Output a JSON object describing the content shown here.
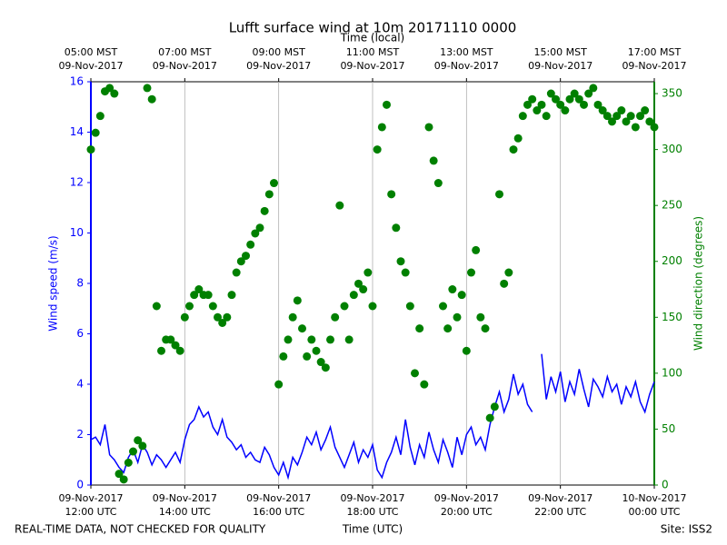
{
  "chart_data": {
    "type": "line",
    "title": "Lufft surface wind at 10m 20171110 0000",
    "top_xlabel": "Time (local)",
    "xlabel": "Time (UTC)",
    "ylabel": "Wind speed (m/s)",
    "y2label": "Wind direction (degrees)",
    "footer_left": "REAL-TIME DATA, NOT CHECKED FOR QUALITY",
    "footer_right": "Site: ISS2",
    "grid": "x",
    "xlim": [
      "2017-11-09T12:00",
      "2017-11-10T00:00"
    ],
    "xticks": [
      {
        "value": "2017-11-09T12:00",
        "label": [
          "09-Nov-2017",
          "12:00 UTC"
        ]
      },
      {
        "value": "2017-11-09T14:00",
        "label": [
          "09-Nov-2017",
          "14:00 UTC"
        ]
      },
      {
        "value": "2017-11-09T16:00",
        "label": [
          "09-Nov-2017",
          "16:00 UTC"
        ]
      },
      {
        "value": "2017-11-09T18:00",
        "label": [
          "09-Nov-2017",
          "18:00 UTC"
        ]
      },
      {
        "value": "2017-11-09T20:00",
        "label": [
          "09-Nov-2017",
          "20:00 UTC"
        ]
      },
      {
        "value": "2017-11-09T22:00",
        "label": [
          "09-Nov-2017",
          "22:00 UTC"
        ]
      },
      {
        "value": "2017-11-10T00:00",
        "label": [
          "10-Nov-2017",
          "00:00 UTC"
        ]
      }
    ],
    "top_xticks": [
      {
        "value": "2017-11-09T12:00",
        "label": [
          "05:00 MST",
          "09-Nov-2017"
        ]
      },
      {
        "value": "2017-11-09T14:00",
        "label": [
          "07:00 MST",
          "09-Nov-2017"
        ]
      },
      {
        "value": "2017-11-09T16:00",
        "label": [
          "09:00 MST",
          "09-Nov-2017"
        ]
      },
      {
        "value": "2017-11-09T18:00",
        "label": [
          "11:00 MST",
          "09-Nov-2017"
        ]
      },
      {
        "value": "2017-11-09T20:00",
        "label": [
          "13:00 MST",
          "09-Nov-2017"
        ]
      },
      {
        "value": "2017-11-09T22:00",
        "label": [
          "15:00 MST",
          "09-Nov-2017"
        ]
      },
      {
        "value": "2017-11-10T00:00",
        "label": [
          "17:00 MST",
          "09-Nov-2017"
        ]
      }
    ],
    "ylim": [
      0,
      16
    ],
    "yticks": [
      0,
      2,
      4,
      6,
      8,
      10,
      12,
      14,
      16
    ],
    "y2lim": [
      0,
      360.6
    ],
    "y2ticks": [
      0,
      50,
      100,
      150,
      200,
      250,
      300,
      350
    ],
    "ycolor": "#0000ff",
    "y2color": "#008000",
    "x": [
      "2017-11-09T12:00",
      "2017-11-09T12:06",
      "2017-11-09T12:12",
      "2017-11-09T12:18",
      "2017-11-09T12:24",
      "2017-11-09T12:30",
      "2017-11-09T12:36",
      "2017-11-09T12:42",
      "2017-11-09T12:48",
      "2017-11-09T12:54",
      "2017-11-09T13:00",
      "2017-11-09T13:06",
      "2017-11-09T13:12",
      "2017-11-09T13:18",
      "2017-11-09T13:24",
      "2017-11-09T13:30",
      "2017-11-09T13:36",
      "2017-11-09T13:42",
      "2017-11-09T13:48",
      "2017-11-09T13:54",
      "2017-11-09T14:00",
      "2017-11-09T14:06",
      "2017-11-09T14:12",
      "2017-11-09T14:18",
      "2017-11-09T14:24",
      "2017-11-09T14:30",
      "2017-11-09T14:36",
      "2017-11-09T14:42",
      "2017-11-09T14:48",
      "2017-11-09T14:54",
      "2017-11-09T15:00",
      "2017-11-09T15:06",
      "2017-11-09T15:12",
      "2017-11-09T15:18",
      "2017-11-09T15:24",
      "2017-11-09T15:30",
      "2017-11-09T15:36",
      "2017-11-09T15:42",
      "2017-11-09T15:48",
      "2017-11-09T15:54",
      "2017-11-09T16:00",
      "2017-11-09T16:06",
      "2017-11-09T16:12",
      "2017-11-09T16:18",
      "2017-11-09T16:24",
      "2017-11-09T16:30",
      "2017-11-09T16:36",
      "2017-11-09T16:42",
      "2017-11-09T16:48",
      "2017-11-09T16:54",
      "2017-11-09T17:00",
      "2017-11-09T17:06",
      "2017-11-09T17:12",
      "2017-11-09T17:18",
      "2017-11-09T17:24",
      "2017-11-09T17:30",
      "2017-11-09T17:36",
      "2017-11-09T17:42",
      "2017-11-09T17:48",
      "2017-11-09T17:54",
      "2017-11-09T18:00",
      "2017-11-09T18:06",
      "2017-11-09T18:12",
      "2017-11-09T18:18",
      "2017-11-09T18:24",
      "2017-11-09T18:30",
      "2017-11-09T18:36",
      "2017-11-09T18:42",
      "2017-11-09T18:48",
      "2017-11-09T18:54",
      "2017-11-09T19:00",
      "2017-11-09T19:06",
      "2017-11-09T19:12",
      "2017-11-09T19:18",
      "2017-11-09T19:24",
      "2017-11-09T19:30",
      "2017-11-09T19:36",
      "2017-11-09T19:42",
      "2017-11-09T19:48",
      "2017-11-09T19:54",
      "2017-11-09T20:00",
      "2017-11-09T20:06",
      "2017-11-09T20:12",
      "2017-11-09T20:18",
      "2017-11-09T20:24",
      "2017-11-09T20:30",
      "2017-11-09T20:36",
      "2017-11-09T20:42",
      "2017-11-09T20:48",
      "2017-11-09T20:54",
      "2017-11-09T21:00",
      "2017-11-09T21:06",
      "2017-11-09T21:12",
      "2017-11-09T21:18",
      "2017-11-09T21:24",
      "2017-11-09T21:30",
      "2017-11-09T21:36",
      "2017-11-09T21:42",
      "2017-11-09T21:48",
      "2017-11-09T21:54",
      "2017-11-09T22:00",
      "2017-11-09T22:06",
      "2017-11-09T22:12",
      "2017-11-09T22:18",
      "2017-11-09T22:24",
      "2017-11-09T22:30",
      "2017-11-09T22:36",
      "2017-11-09T22:42",
      "2017-11-09T22:48",
      "2017-11-09T22:54",
      "2017-11-09T23:00",
      "2017-11-09T23:06",
      "2017-11-09T23:12",
      "2017-11-09T23:18",
      "2017-11-09T23:24",
      "2017-11-09T23:30",
      "2017-11-09T23:36",
      "2017-11-09T23:42",
      "2017-11-09T23:48",
      "2017-11-09T23:54",
      "2017-11-10T00:00"
    ],
    "series": [
      {
        "name": "Wind speed",
        "style": "line",
        "axis": "y",
        "color": "#0000ff",
        "values": [
          1.8,
          1.9,
          1.6,
          2.4,
          1.2,
          1.0,
          0.7,
          0.5,
          1.1,
          1.4,
          0.9,
          1.6,
          1.3,
          0.8,
          1.2,
          1.0,
          0.7,
          1.0,
          1.3,
          0.9,
          1.8,
          2.4,
          2.6,
          3.1,
          2.7,
          2.9,
          2.3,
          2.0,
          2.6,
          1.9,
          1.7,
          1.4,
          1.6,
          1.1,
          1.3,
          1.0,
          0.9,
          1.5,
          1.2,
          0.7,
          0.4,
          0.9,
          0.3,
          1.1,
          0.8,
          1.3,
          1.9,
          1.6,
          2.1,
          1.4,
          1.8,
          2.3,
          1.5,
          1.1,
          0.7,
          1.2,
          1.7,
          0.9,
          1.4,
          1.1,
          1.6,
          0.6,
          0.3,
          0.9,
          1.3,
          1.9,
          1.2,
          2.6,
          1.5,
          0.8,
          1.6,
          1.1,
          2.1,
          1.4,
          0.9,
          1.8,
          1.3,
          0.7,
          1.9,
          1.2,
          2.0,
          2.3,
          1.6,
          1.9,
          1.4,
          2.4,
          3.1,
          3.7,
          2.9,
          3.4,
          4.4,
          3.6,
          4.0,
          3.2,
          2.9,
          null,
          5.2,
          3.4,
          4.3,
          3.7,
          4.5,
          3.3,
          4.1,
          3.6,
          4.6,
          3.8,
          3.1,
          4.2,
          3.9,
          3.5,
          4.3,
          3.7,
          4.0,
          3.2,
          3.9,
          3.5,
          4.1,
          3.3,
          2.9,
          3.6,
          4.1
        ]
      },
      {
        "name": "Wind direction",
        "style": "points",
        "axis": "y2",
        "color": "#008000",
        "values": [
          300,
          315,
          330,
          352,
          355,
          350,
          10,
          5,
          20,
          30,
          40,
          35,
          355,
          345,
          160,
          120,
          130,
          130,
          125,
          120,
          150,
          160,
          170,
          175,
          170,
          170,
          160,
          150,
          145,
          150,
          170,
          190,
          200,
          205,
          215,
          225,
          230,
          245,
          260,
          270,
          90,
          115,
          130,
          150,
          165,
          140,
          115,
          130,
          120,
          110,
          105,
          130,
          150,
          250,
          160,
          130,
          170,
          180,
          175,
          190,
          160,
          300,
          320,
          340,
          260,
          230,
          200,
          190,
          160,
          100,
          140,
          90,
          320,
          290,
          270,
          160,
          140,
          175,
          150,
          170,
          120,
          190,
          210,
          150,
          140,
          60,
          70,
          260,
          180,
          190,
          300,
          310,
          330,
          340,
          345,
          335,
          340,
          330,
          350,
          345,
          340,
          335,
          345,
          350,
          345,
          340,
          350,
          355,
          340,
          335,
          330,
          325,
          330,
          335,
          325,
          330,
          320,
          330,
          335,
          325,
          320
        ]
      }
    ]
  }
}
